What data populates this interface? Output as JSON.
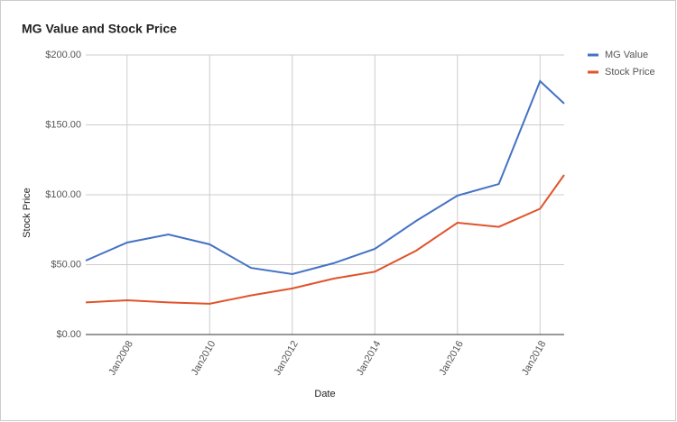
{
  "chart_data": {
    "type": "line",
    "title": "MG Value and Stock Price",
    "x_label": "Date",
    "y_label": "Stock Price",
    "x": [
      "2007-01",
      "2008-01",
      "2009-01",
      "2010-01",
      "2011-01",
      "2012-01",
      "2013-01",
      "2014-01",
      "2015-01",
      "2016-01",
      "2017-01",
      "2018-01",
      "2018-08"
    ],
    "series": [
      {
        "name": "MG Value",
        "color": "#4472c4",
        "values": [
          52.9,
          65.8,
          71.6,
          64.5,
          47.7,
          43.2,
          51,
          61.3,
          81.3,
          99.4,
          107.7,
          181.3,
          165.2
        ]
      },
      {
        "name": "Stock Price",
        "color": "#e0532b",
        "values": [
          23,
          24.5,
          23,
          22,
          28,
          33,
          40,
          45,
          60,
          80,
          77,
          90,
          114.2
        ]
      }
    ],
    "xlim": [
      "2007-01",
      "2018-08"
    ],
    "xticks": [
      {
        "value": "2008-01",
        "label": "Jan2008"
      },
      {
        "value": "2010-01",
        "label": "Jan2010"
      },
      {
        "value": "2012-01",
        "label": "Jan2012"
      },
      {
        "value": "2014-01",
        "label": "Jan2014"
      },
      {
        "value": "2016-01",
        "label": "Jan2016"
      },
      {
        "value": "2018-01",
        "label": "Jan2018"
      }
    ],
    "ylim": [
      0,
      200
    ],
    "yticks": [
      {
        "value": 0,
        "label": "$0.00"
      },
      {
        "value": 50,
        "label": "$50.00"
      },
      {
        "value": 100,
        "label": "$100.00"
      },
      {
        "value": 150,
        "label": "$150.00"
      },
      {
        "value": 200,
        "label": "$200.00"
      }
    ],
    "grid": true,
    "legend": "right"
  }
}
